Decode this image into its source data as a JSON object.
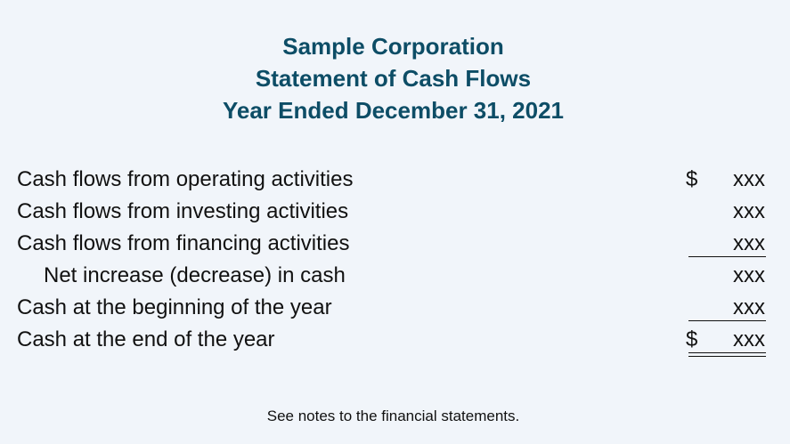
{
  "header": {
    "company": "Sample Corporation",
    "statement": "Statement of Cash Flows",
    "period": "Year Ended December 31, 2021"
  },
  "rows": [
    {
      "label": "Cash flows from operating activities",
      "dollar": "$",
      "amount": "xxx"
    },
    {
      "label": "Cash flows from investing activities",
      "dollar": "",
      "amount": "xxx"
    },
    {
      "label": "Cash flows from financing activities",
      "dollar": "",
      "amount": "xxx"
    },
    {
      "label": "Net increase (decrease) in cash",
      "dollar": "",
      "amount": "xxx"
    },
    {
      "label": "Cash at the beginning of the year",
      "dollar": "",
      "amount": "xxx"
    },
    {
      "label": "Cash at the end of the year",
      "dollar": "$",
      "amount": "xxx"
    }
  ],
  "footnote": "See notes to the financial statements.",
  "colors": {
    "heading": "#0d4d66",
    "background": "#f1f5fa",
    "text": "#111111"
  }
}
